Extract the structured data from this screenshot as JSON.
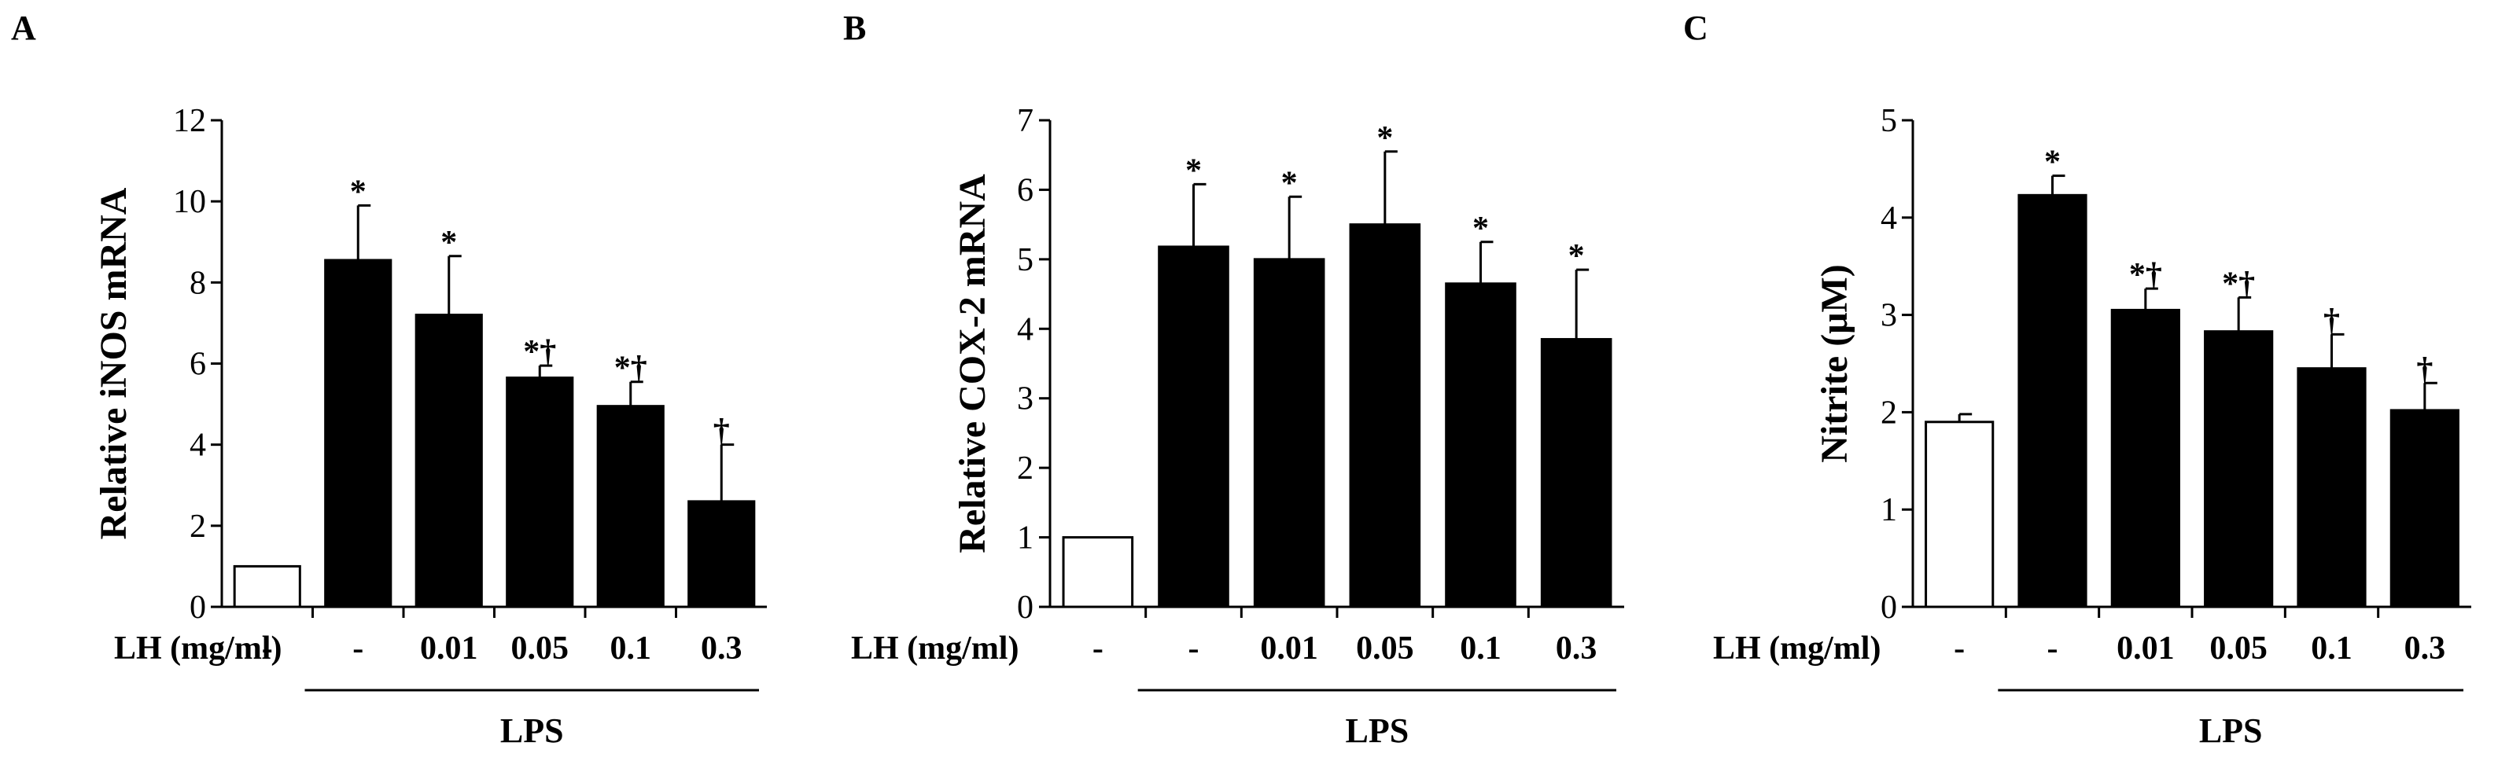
{
  "figure": {
    "treatment_label": "LH (mg/ml)",
    "group_label": "LPS",
    "categories": [
      "-",
      "-",
      "0.01",
      "0.05",
      "0.1",
      "0.3"
    ]
  },
  "chart_data": [
    {
      "panel": "A",
      "type": "bar",
      "title": "",
      "xlabel": "LH (mg/ml)",
      "ylabel": "Relative iNOS mRNA",
      "ylim": [
        0,
        12
      ],
      "yticks": [
        0,
        2,
        4,
        6,
        8,
        10,
        12
      ],
      "categories": [
        "-",
        "-",
        "0.01",
        "0.05",
        "0.1",
        "0.3"
      ],
      "group": "LPS",
      "values": [
        1.0,
        8.55,
        7.2,
        5.65,
        4.95,
        2.6
      ],
      "errors": [
        0,
        1.35,
        1.45,
        0.3,
        0.6,
        1.4
      ],
      "colors": [
        "#ffffff",
        "#000000",
        "#000000",
        "#000000",
        "#000000",
        "#000000"
      ],
      "significance": [
        "",
        "*",
        "*",
        "*†",
        "*†",
        "†"
      ]
    },
    {
      "panel": "B",
      "type": "bar",
      "title": "",
      "xlabel": "LH (mg/ml)",
      "ylabel": "Relative COX-2 mRNA",
      "ylim": [
        0,
        7
      ],
      "yticks": [
        0,
        1,
        2,
        3,
        4,
        5,
        6,
        7
      ],
      "categories": [
        "-",
        "-",
        "0.01",
        "0.05",
        "0.1",
        "0.3"
      ],
      "group": "LPS",
      "values": [
        1.0,
        5.18,
        5.0,
        5.5,
        4.65,
        3.85
      ],
      "errors": [
        0,
        0.9,
        0.9,
        1.05,
        0.6,
        1.0
      ],
      "colors": [
        "#ffffff",
        "#000000",
        "#000000",
        "#000000",
        "#000000",
        "#000000"
      ],
      "significance": [
        "",
        "*",
        "*",
        "*",
        "*",
        "*"
      ]
    },
    {
      "panel": "C",
      "type": "bar",
      "title": "",
      "xlabel": "LH (mg/ml)",
      "ylabel": "Nitrite (μM)",
      "ylim": [
        0,
        5
      ],
      "yticks": [
        0,
        1,
        2,
        3,
        4,
        5
      ],
      "categories": [
        "-",
        "-",
        "0.01",
        "0.05",
        "0.1",
        "0.3"
      ],
      "group": "LPS",
      "values": [
        1.9,
        4.23,
        3.05,
        2.83,
        2.45,
        2.02
      ],
      "errors": [
        0.08,
        0.2,
        0.22,
        0.35,
        0.35,
        0.28
      ],
      "colors": [
        "#ffffff",
        "#000000",
        "#000000",
        "#000000",
        "#000000",
        "#000000"
      ],
      "significance": [
        "",
        "*",
        "*†",
        "*†",
        "†",
        "†"
      ]
    }
  ]
}
